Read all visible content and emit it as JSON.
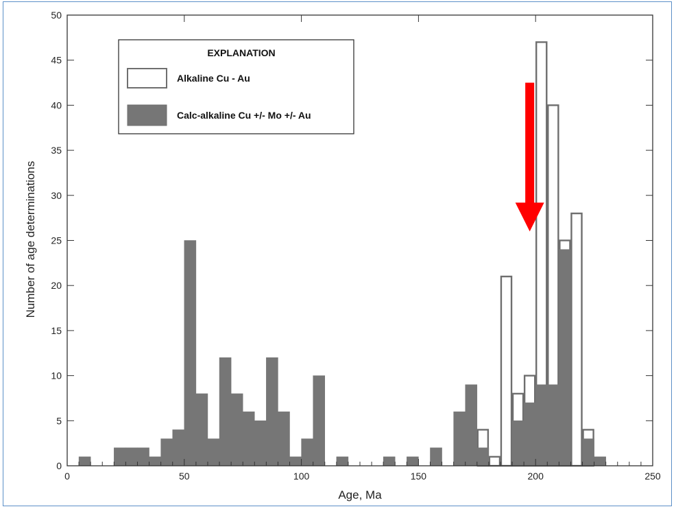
{
  "chart_data": {
    "type": "bar",
    "xlabel": "Age, Ma",
    "ylabel": "Number of age determinations",
    "xlim": [
      0,
      250
    ],
    "ylim": [
      0,
      50
    ],
    "xticks": [
      0,
      50,
      100,
      150,
      200,
      250
    ],
    "yticks": [
      0,
      5,
      10,
      15,
      20,
      25,
      30,
      35,
      40,
      45,
      50
    ],
    "bin_width": 5,
    "legend": {
      "title": "EXPLANATION",
      "position": "top-left",
      "entries": [
        {
          "label": "Alkaline Cu - Au",
          "style": "open"
        },
        {
          "label": "Calc-alkaline Cu +/- Mo +/- Au",
          "style": "filled"
        }
      ]
    },
    "colors": {
      "filled": "#767676",
      "outline": "#6e6e6e",
      "arrow": "#ff0000"
    },
    "series": [
      {
        "name": "Calc-alkaline Cu +/- Mo +/- Au",
        "bins": [
          {
            "x0": 5,
            "count": 1
          },
          {
            "x0": 20,
            "count": 2
          },
          {
            "x0": 25,
            "count": 2
          },
          {
            "x0": 30,
            "count": 2
          },
          {
            "x0": 35,
            "count": 1
          },
          {
            "x0": 40,
            "count": 3
          },
          {
            "x0": 45,
            "count": 4
          },
          {
            "x0": 50,
            "count": 25
          },
          {
            "x0": 55,
            "count": 8
          },
          {
            "x0": 60,
            "count": 3
          },
          {
            "x0": 65,
            "count": 12
          },
          {
            "x0": 70,
            "count": 8
          },
          {
            "x0": 75,
            "count": 6
          },
          {
            "x0": 80,
            "count": 5
          },
          {
            "x0": 85,
            "count": 12
          },
          {
            "x0": 90,
            "count": 6
          },
          {
            "x0": 95,
            "count": 1
          },
          {
            "x0": 100,
            "count": 3
          },
          {
            "x0": 105,
            "count": 10
          },
          {
            "x0": 115,
            "count": 1
          },
          {
            "x0": 135,
            "count": 1
          },
          {
            "x0": 145,
            "count": 1
          },
          {
            "x0": 155,
            "count": 2
          },
          {
            "x0": 165,
            "count": 6
          },
          {
            "x0": 170,
            "count": 9
          },
          {
            "x0": 175,
            "count": 2
          },
          {
            "x0": 190,
            "count": 5
          },
          {
            "x0": 195,
            "count": 7
          },
          {
            "x0": 200,
            "count": 9
          },
          {
            "x0": 205,
            "count": 9
          },
          {
            "x0": 210,
            "count": 24
          },
          {
            "x0": 220,
            "count": 3
          },
          {
            "x0": 225,
            "count": 1
          }
        ]
      },
      {
        "name": "Alkaline Cu - Au",
        "note_stacked": true,
        "bins": [
          {
            "x0": 175,
            "count": 4
          },
          {
            "x0": 180,
            "count": 1
          },
          {
            "x0": 185,
            "count": 21
          },
          {
            "x0": 190,
            "count": 8
          },
          {
            "x0": 195,
            "count": 10
          },
          {
            "x0": 200,
            "count": 47
          },
          {
            "x0": 205,
            "count": 40
          },
          {
            "x0": 210,
            "count": 25
          },
          {
            "x0": 215,
            "count": 28
          },
          {
            "x0": 220,
            "count": 4
          }
        ]
      }
    ],
    "annotation": {
      "type": "arrow",
      "x": 197.5,
      "y_from": 42.5,
      "y_to": 26
    }
  }
}
